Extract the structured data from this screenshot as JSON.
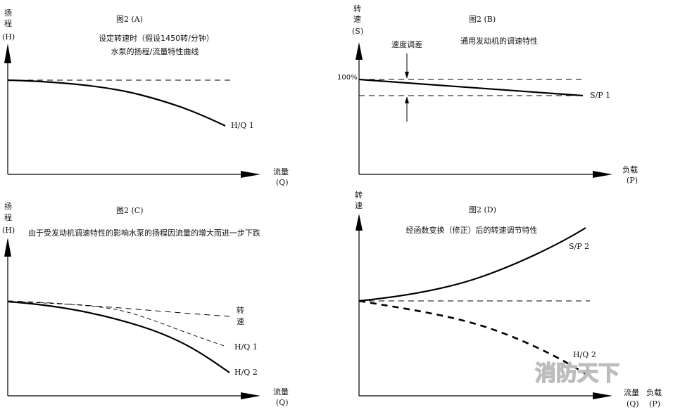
{
  "panel_a": {
    "title": "图2 (A)",
    "subtitle_1": "设定转速时（假设1450转/分钟）",
    "subtitle_2": "水泵的扬程/流量特性曲线",
    "y_label_1": "扬",
    "y_label_2": "程",
    "y_label_3": "(H)",
    "x_label_1": "流量",
    "x_label_2": "(Q)",
    "curve_label": "H/Q 1"
  },
  "panel_b": {
    "title": "图2 (B)",
    "subtitle": "通用发动机的调速特性",
    "y_label_1": "转",
    "y_label_2": "速",
    "y_label_3": "(S)",
    "x_label_1": "负载",
    "x_label_2": "(P)",
    "tick_100": "100%",
    "droop_label": "速度调差",
    "curve_label": "S/P 1"
  },
  "panel_c": {
    "title": "图2 (C)",
    "subtitle": "由于受发动机调速特性的影响水泵的扬程因流量的增大而进一步下跌",
    "y_label_1": "扬",
    "y_label_2": "程",
    "y_label_3": "(H)",
    "x_label_1": "流量",
    "x_label_2": "(Q)",
    "speed_label_1": "转",
    "speed_label_2": "速",
    "curve1_label": "H/Q 1",
    "curve2_label": "H/Q 2"
  },
  "panel_d": {
    "title": "图2 (D)",
    "subtitle": "经函数变换（修正）后的转速调节特性",
    "y_label_1": "转",
    "y_label_2": "速",
    "x_label_q": "流量",
    "x_label_q2": "(Q)",
    "x_label_p": "负载",
    "x_label_p2": "(P)",
    "curve1_label": "S/P 2",
    "curve2_label": "H/Q 2"
  },
  "watermark": "消防天下"
}
